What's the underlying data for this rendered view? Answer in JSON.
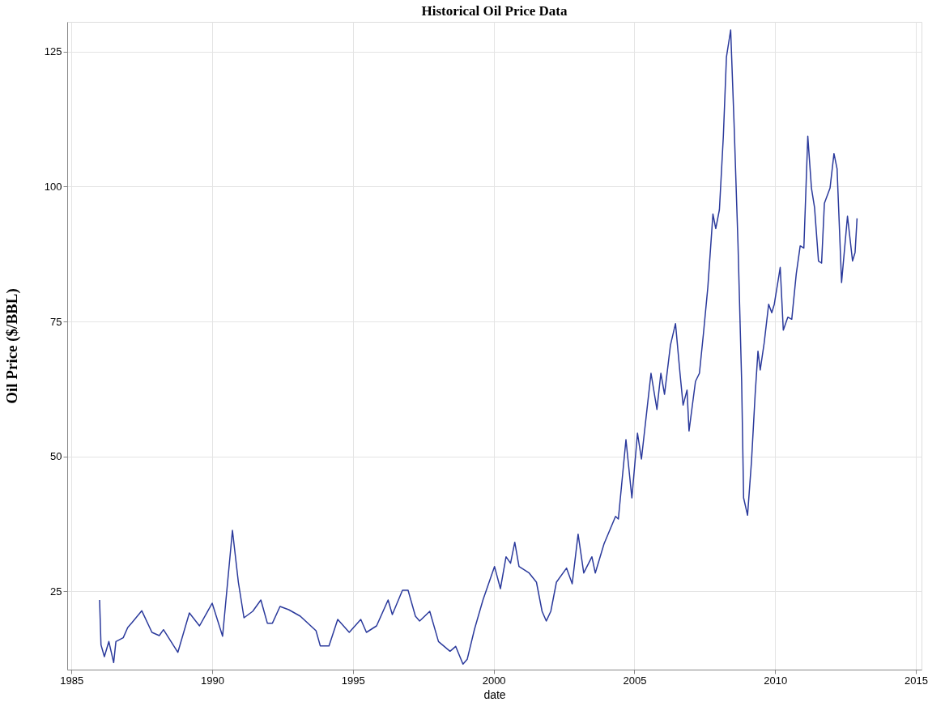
{
  "chart_data": {
    "type": "line",
    "title": "Historical Oil Price Data",
    "xlabel": "date",
    "ylabel": "Oil Price ($/BBL)",
    "x": [
      1986.0,
      1986.05,
      1986.17,
      1986.33,
      1986.5,
      1986.58,
      1986.84,
      1987.0,
      1987.15,
      1987.5,
      1987.86,
      1988.12,
      1988.27,
      1988.78,
      1989.19,
      1989.55,
      1990.0,
      1990.37,
      1990.72,
      1990.93,
      1991.13,
      1991.44,
      1991.73,
      1991.96,
      1992.14,
      1992.41,
      1992.72,
      1993.13,
      1993.69,
      1993.84,
      1994.15,
      1994.46,
      1994.87,
      1995.28,
      1995.48,
      1995.84,
      1996.25,
      1996.4,
      1996.76,
      1996.96,
      1997.22,
      1997.37,
      1997.73,
      1998.04,
      1998.45,
      1998.65,
      1998.91,
      1999.06,
      1999.32,
      1999.62,
      2000.03,
      2000.24,
      2000.44,
      2000.6,
      2000.75,
      2000.9,
      2001.26,
      2001.52,
      2001.72,
      2001.87,
      2002.03,
      2002.23,
      2002.59,
      2002.79,
      2003.0,
      2003.2,
      2003.49,
      2003.61,
      2003.92,
      2004.33,
      2004.43,
      2004.7,
      2004.91,
      2005.11,
      2005.25,
      2005.59,
      2005.8,
      2005.94,
      2006.07,
      2006.28,
      2006.46,
      2006.62,
      2006.73,
      2006.87,
      2006.94,
      2007.17,
      2007.31,
      2007.45,
      2007.61,
      2007.79,
      2007.89,
      2008.02,
      2008.16,
      2008.27,
      2008.42,
      2008.54,
      2008.68,
      2008.81,
      2008.88,
      2009.02,
      2009.16,
      2009.29,
      2009.39,
      2009.47,
      2009.61,
      2009.77,
      2009.88,
      2009.97,
      2010.18,
      2010.29,
      2010.45,
      2010.59,
      2010.75,
      2010.89,
      2011.02,
      2011.16,
      2011.29,
      2011.4,
      2011.54,
      2011.65,
      2011.75,
      2011.95,
      2012.09,
      2012.2,
      2012.36,
      2012.57,
      2012.75,
      2012.84,
      2012.91
    ],
    "series": [
      {
        "color": "#2b3a9c",
        "values": [
          23.4,
          15.1,
          12.9,
          15.7,
          11.8,
          15.7,
          16.4,
          18.3,
          19.2,
          21.4,
          17.4,
          16.8,
          17.9,
          13.7,
          21.0,
          18.6,
          22.8,
          16.7,
          36.3,
          26.7,
          20.1,
          21.3,
          23.4,
          19.1,
          19.1,
          22.2,
          21.6,
          20.4,
          17.7,
          14.9,
          14.9,
          19.8,
          17.4,
          19.8,
          17.4,
          18.6,
          23.4,
          20.7,
          25.2,
          25.2,
          20.4,
          19.5,
          21.3,
          15.7,
          13.9,
          14.8,
          11.5,
          12.4,
          18.0,
          23.4,
          29.6,
          25.5,
          31.4,
          30.2,
          34.1,
          29.6,
          28.4,
          26.7,
          21.3,
          19.5,
          21.3,
          26.7,
          29.3,
          26.4,
          35.6,
          28.4,
          31.4,
          28.4,
          33.8,
          38.9,
          38.4,
          53.1,
          42.3,
          54.3,
          49.5,
          65.4,
          58.7,
          65.4,
          61.5,
          70.6,
          74.6,
          65.4,
          59.5,
          62.3,
          54.7,
          63.9,
          65.4,
          72.6,
          81.4,
          94.9,
          92.2,
          95.7,
          109.3,
          124.0,
          129.0,
          111.8,
          89.4,
          63.9,
          42.3,
          39.1,
          49.1,
          61.5,
          69.5,
          66.0,
          71.0,
          78.2,
          76.6,
          78.2,
          85.0,
          73.4,
          75.8,
          75.4,
          83.8,
          89.0,
          88.6,
          109.3,
          99.7,
          96.1,
          86.2,
          85.8,
          96.9,
          99.7,
          106.1,
          103.3,
          82.2,
          94.5,
          86.2,
          87.8,
          94.1
        ]
      }
    ],
    "xlim": [
      1984.85,
      2015.2
    ],
    "xticks": [
      1985,
      1990,
      1995,
      2000,
      2005,
      2010,
      2015
    ],
    "ylim": [
      10.5,
      130.5
    ],
    "yticks": [
      25,
      50,
      75,
      100,
      125
    ],
    "grid": true,
    "marker": "none",
    "line_style": "solid"
  }
}
